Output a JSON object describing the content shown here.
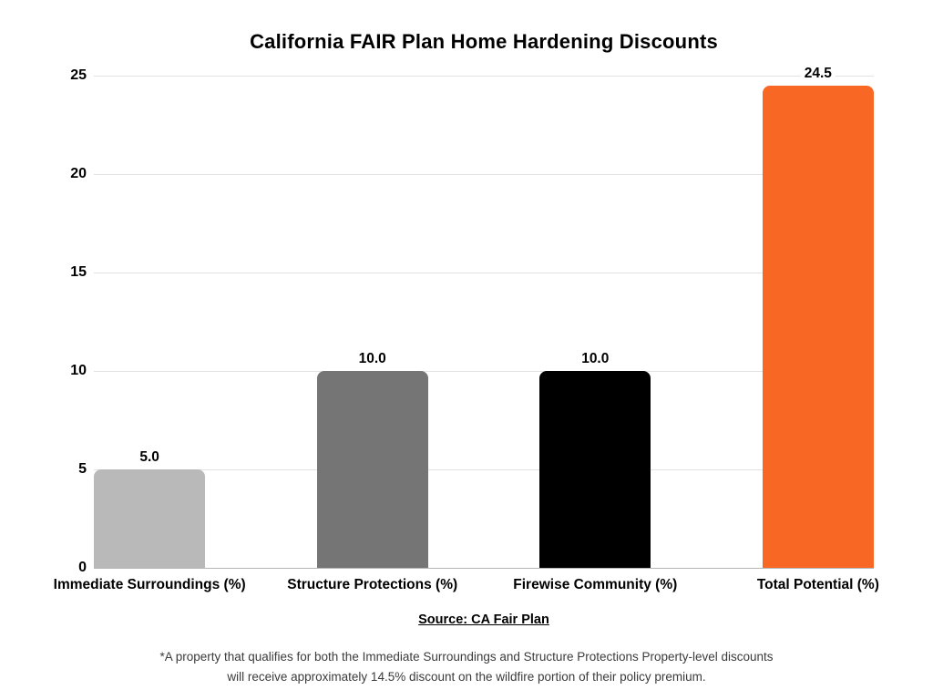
{
  "chart_data": {
    "type": "bar",
    "title": "California FAIR Plan Home Hardening Discounts",
    "categories": [
      "Immediate Surroundings (%)",
      "Structure Protections (%)",
      "Firewise Community (%)",
      "Total Potential (%)"
    ],
    "values": [
      5.0,
      10.0,
      10.0,
      24.5
    ],
    "value_labels": [
      "5.0",
      "10.0",
      "10.0",
      "24.5"
    ],
    "bar_colors": [
      "#b9b9b9",
      "#757575",
      "#000000",
      "#f96724"
    ],
    "ylim": [
      0,
      25
    ],
    "yticks": [
      0,
      5,
      10,
      15,
      20,
      25
    ],
    "ytick_labels": [
      "0",
      "5",
      "10",
      "15",
      "20",
      "25"
    ],
    "grid": "horizontal",
    "gridline_color": "#e3e3e3",
    "baseline_color": "#b5b5b5",
    "legend": "none",
    "xlabel": "",
    "ylabel": ""
  },
  "source": {
    "label": "Source: CA Fair Plan"
  },
  "footnote": {
    "line1": "*A property that qualifies for both the Immediate Surroundings and Structure Protections Property-level discounts",
    "line2": "will receive approximately 14.5% discount on the wildfire portion of their policy premium."
  }
}
